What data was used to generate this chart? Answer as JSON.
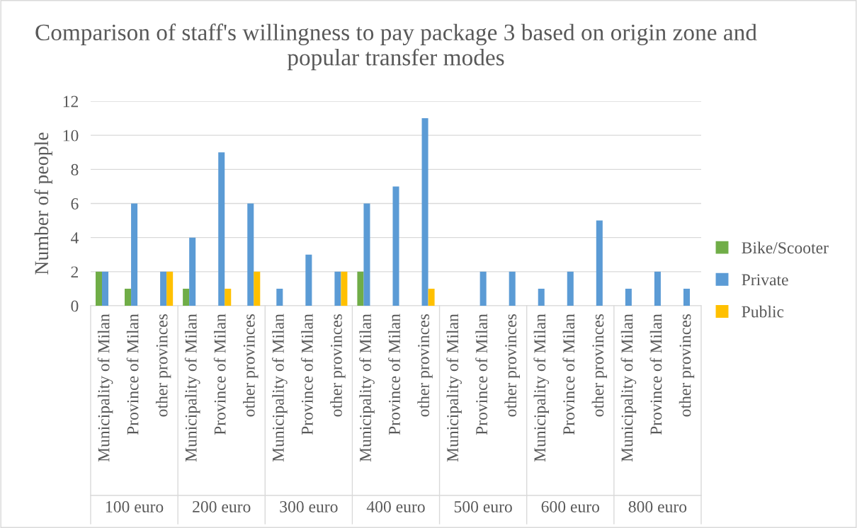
{
  "chart_data": {
    "type": "bar",
    "title": "Comparison of staff's willingness to pay package 3 based on origin zone and popular transfer modes",
    "ylabel": "Number of people",
    "categories": [
      "Municipality of Milan",
      "Province of Milan",
      "other provinces",
      "Municipality of Milan",
      "Province of Milan",
      "other provinces",
      "Municipality of Milan",
      "Province of Milan",
      "other provinces",
      "Municipality of Milan",
      "Province of Milan",
      "other provinces",
      "Municipality of Milan",
      "Province of Milan",
      "other provinces",
      "Municipality of Milan",
      "Province of Milan",
      "other provinces",
      "Municipality of Milan",
      "Province of Milan",
      "other provinces"
    ],
    "annotations": [
      "100 euro",
      "200 euro",
      "300 euro",
      "400 euro",
      "500 euro",
      "600 euro",
      "800 euro"
    ],
    "series": [
      {
        "name": "Bike/Scooter",
        "color": "#70ad47",
        "values": [
          2,
          1,
          null,
          1,
          null,
          null,
          null,
          null,
          null,
          2,
          null,
          null,
          null,
          null,
          null,
          null,
          null,
          null,
          null,
          null,
          null
        ]
      },
      {
        "name": "Private",
        "color": "#5b9bd5",
        "values": [
          2,
          6,
          2,
          4,
          9,
          6,
          1,
          3,
          2,
          6,
          7,
          11,
          null,
          2,
          2,
          1,
          2,
          5,
          1,
          2,
          1
        ]
      },
      {
        "name": "Public",
        "color": "#ffc000",
        "values": [
          null,
          null,
          2,
          null,
          1,
          2,
          null,
          null,
          2,
          null,
          null,
          1,
          null,
          null,
          null,
          null,
          null,
          null,
          null,
          null,
          null
        ]
      }
    ],
    "ylim": [
      0,
      12
    ],
    "yticks": [
      0,
      2,
      4,
      6,
      8,
      10,
      12
    ],
    "grid": "y",
    "legend": "right"
  }
}
